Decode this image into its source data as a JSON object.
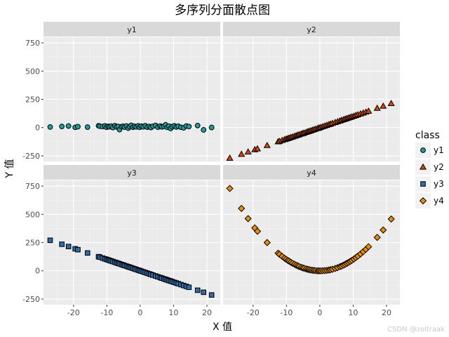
{
  "chart_data": {
    "type": "scatter",
    "title": "多序列分面散点图",
    "xlabel": "X 值",
    "ylabel": "Y 值",
    "xlim": [
      -29,
      24
    ],
    "ylim": [
      -300,
      800
    ],
    "x_ticks": [
      -20,
      -10,
      0,
      10,
      20
    ],
    "y_ticks": [
      -250,
      0,
      250,
      500,
      750
    ],
    "x_tick_labels": [
      "-20",
      "-10",
      "0",
      "10",
      "20"
    ],
    "y_tick_labels": [
      "-250",
      "0",
      "250",
      "500",
      "750"
    ],
    "grid": true,
    "facets": [
      "y1",
      "y2",
      "y3",
      "y4"
    ],
    "legend": {
      "title": "class",
      "position": "right",
      "items": [
        {
          "label": "y1",
          "shape": "circle",
          "color": "#1f9e9e"
        },
        {
          "label": "y2",
          "shape": "triangle",
          "color": "#d94801"
        },
        {
          "label": "y3",
          "shape": "square",
          "color": "#2c6ca8"
        },
        {
          "label": "y4",
          "shape": "diamond",
          "color": "#f08c00"
        }
      ]
    },
    "x": [
      -27,
      -23.5,
      -21.5,
      -19.5,
      -18.7,
      -15.8,
      -12.5,
      -12.1,
      -11.3,
      -10.6,
      -10.1,
      -9.6,
      -9.2,
      -8.7,
      -8.2,
      -7.6,
      -7.1,
      -6.6,
      -6.2,
      -5.6,
      -5.1,
      -4.7,
      -4.1,
      -3.6,
      -3.2,
      -2.7,
      -2.2,
      -1.7,
      -1.2,
      -0.6,
      -0.2,
      0.3,
      0.9,
      1.5,
      2.1,
      2.7,
      3.2,
      3.8,
      4.6,
      5.3,
      6.0,
      6.5,
      7.1,
      7.6,
      8.1,
      8.6,
      9.1,
      9.6,
      10.2,
      10.8,
      11.4,
      12.2,
      13.0,
      13.8,
      14.6,
      17.2,
      19.0,
      21.4
    ],
    "series": [
      {
        "name": "y1",
        "values": [
          5,
          10,
          14,
          2,
          8,
          4,
          16,
          12,
          9,
          15,
          3,
          11,
          7,
          13,
          1,
          17,
          5,
          10,
          -18,
          8,
          12,
          4,
          14,
          -5,
          9,
          20,
          3,
          11,
          6,
          15,
          2,
          13,
          7,
          17,
          4,
          10,
          1,
          12,
          19,
          3,
          14,
          6,
          11,
          25,
          2,
          13,
          -8,
          8,
          16,
          5,
          12,
          3,
          -2,
          14,
          9,
          18,
          -20,
          1
        ]
      },
      {
        "name": "y2",
        "values": [
          -270,
          -235,
          -215,
          -195,
          -187,
          -158,
          -125,
          -121,
          -113,
          -106,
          -101,
          -96,
          -92,
          -87,
          -82,
          -76,
          -71,
          -66,
          -62,
          -56,
          -51,
          -47,
          -41,
          -36,
          -32,
          -27,
          -22,
          -17,
          -12,
          -6,
          -2,
          3,
          9,
          15,
          21,
          27,
          32,
          38,
          46,
          53,
          60,
          65,
          71,
          76,
          81,
          86,
          91,
          96,
          102,
          108,
          114,
          122,
          130,
          138,
          146,
          172,
          190,
          214
        ]
      },
      {
        "name": "y3",
        "values": [
          270,
          235,
          215,
          195,
          187,
          158,
          125,
          121,
          113,
          106,
          101,
          96,
          92,
          87,
          82,
          76,
          71,
          66,
          62,
          56,
          51,
          47,
          41,
          36,
          32,
          27,
          22,
          17,
          12,
          6,
          2,
          -3,
          -9,
          -15,
          -21,
          -27,
          -32,
          -38,
          -46,
          -53,
          -60,
          -65,
          -71,
          -76,
          -81,
          -86,
          -91,
          -96,
          -102,
          -108,
          -114,
          -122,
          -130,
          -138,
          -146,
          -172,
          -190,
          -214
        ]
      },
      {
        "name": "y4",
        "values": [
          729,
          552,
          462,
          380,
          350,
          250,
          156,
          146,
          128,
          112,
          102,
          92,
          85,
          76,
          67,
          58,
          50,
          44,
          38,
          31,
          26,
          22,
          17,
          13,
          10,
          7,
          5,
          3,
          1,
          0,
          0,
          0,
          1,
          2,
          4,
          7,
          10,
          14,
          21,
          28,
          36,
          42,
          50,
          58,
          66,
          74,
          83,
          92,
          104,
          117,
          130,
          149,
          169,
          190,
          213,
          296,
          361,
          458
        ]
      }
    ]
  },
  "watermark": "CSDN @zoltraak"
}
